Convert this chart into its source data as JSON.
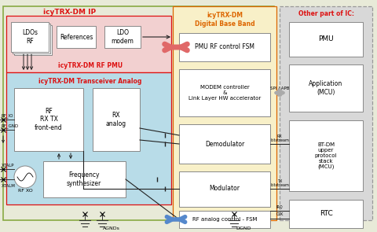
{
  "fig_w": 4.8,
  "fig_h": 2.95,
  "dpi": 100,
  "colors": {
    "outer_bg": "#e8ead8",
    "pmu_bg": "#f2d0d0",
    "analog_bg": "#b8dce8",
    "digital_bg": "#f8f0c8",
    "other_bg": "#d8d8d8",
    "block_fill": "#ffffff",
    "block_edge": "#888888",
    "outer_edge": "#999999",
    "red_label": "#dd1111",
    "orange_label": "#dd6600",
    "arrow_pink": "#e06868",
    "arrow_blue": "#5588cc",
    "arrow_dark": "#222222",
    "line_color": "#555555"
  },
  "labels": {
    "icytrx_ip": "icyTRX-DM IP",
    "icytrx_pmu": "icyTRX-DM RF PMU",
    "icytrx_analog": "icyTRX-DM Transceiver Analog",
    "icytrx_digital": "icyTRX-DM\nDigital Base Band",
    "other_ic": "Other part of IC:",
    "ldos_rf": "LDOs\nRF",
    "references": "References",
    "ldo_modem": "LDO\nmodem",
    "pmu_rf_fsm": "PMU RF control FSM",
    "modem_ctrl": "MODEM controller\n&\nLink Layer HW accelerator",
    "demodulator": "Demodulator",
    "modulator": "Modulator",
    "rf_analog_fsm": "RF analog control - FSM",
    "rf_rx_tx": "RF\nRX TX\nfront-end",
    "rx_analog": "RX\nanalog",
    "freq_synth": "Frequency\nsynthesizer",
    "pmu": "PMU",
    "application": "Application\n(MCU)",
    "bt_dm": "BT-DM\nupper\nprotocol\nstack\n(MCU)",
    "rtc": "RTC",
    "rf_io": "RF_IO",
    "rf_gnd": "RF_GND",
    "xtalp": "XTALP",
    "xtalm": "XTALM",
    "rf_xo": "RF XO",
    "agnds": "AGNDs",
    "dgnd": "DGND",
    "spi_apb": "SPI / APB",
    "rx_bitstream": "RX\nbitstream",
    "tx_bitstream": "TX\nbitstream",
    "irq": "IRQ",
    "clk": "CLK"
  }
}
